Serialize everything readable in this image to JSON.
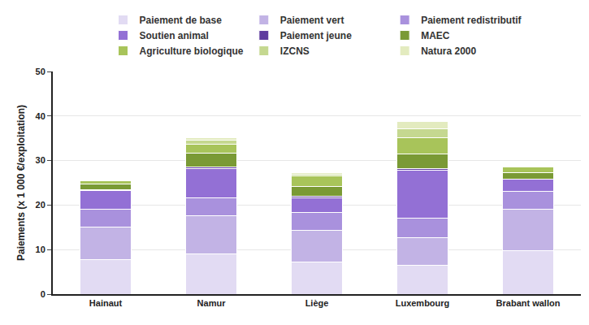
{
  "chart_data": {
    "type": "bar",
    "stacked": true,
    "grid": true,
    "legend": "top",
    "y_label": "Paiements (x 1 000 €/exploitation)",
    "categories": [
      "Hainaut",
      "Namur",
      "Liège",
      "Luxembourg",
      "Brabant wallon"
    ],
    "ylim": [
      0,
      50
    ],
    "yticks": [
      0,
      10,
      20,
      30,
      40,
      50
    ],
    "series": [
      {
        "name": "Paiement de base",
        "color": "#e2dbf3",
        "values": [
          7.7,
          9.0,
          7.3,
          6.5,
          9.8
        ]
      },
      {
        "name": "Paiement vert",
        "color": "#c2b3e5",
        "values": [
          7.3,
          8.6,
          7.0,
          6.1,
          9.3
        ]
      },
      {
        "name": "Paiement redistributif",
        "color": "#a991dd",
        "values": [
          4.1,
          4.1,
          4.0,
          4.5,
          3.9
        ]
      },
      {
        "name": "Soutien animal",
        "color": "#9370d5",
        "values": [
          4.1,
          6.5,
          3.4,
          10.7,
          2.8
        ]
      },
      {
        "name": "Paiement jeune",
        "color": "#5e3b9e",
        "values": [
          0.2,
          0.4,
          0.3,
          0.4,
          0.1
        ]
      },
      {
        "name": "MAEC",
        "color": "#7a9a35",
        "values": [
          1.4,
          3.1,
          2.2,
          3.2,
          1.4
        ]
      },
      {
        "name": "Agriculture biologique",
        "color": "#a8c45a",
        "values": [
          0.6,
          2.0,
          2.3,
          3.8,
          1.2
        ]
      },
      {
        "name": "IZCNS",
        "color": "#c5d890",
        "values": [
          0.05,
          0.9,
          0.5,
          2.0,
          0.1
        ]
      },
      {
        "name": "Natura 2000",
        "color": "#e3ebbf",
        "values": [
          0.0,
          0.5,
          0.3,
          1.5,
          0.0
        ]
      }
    ]
  }
}
